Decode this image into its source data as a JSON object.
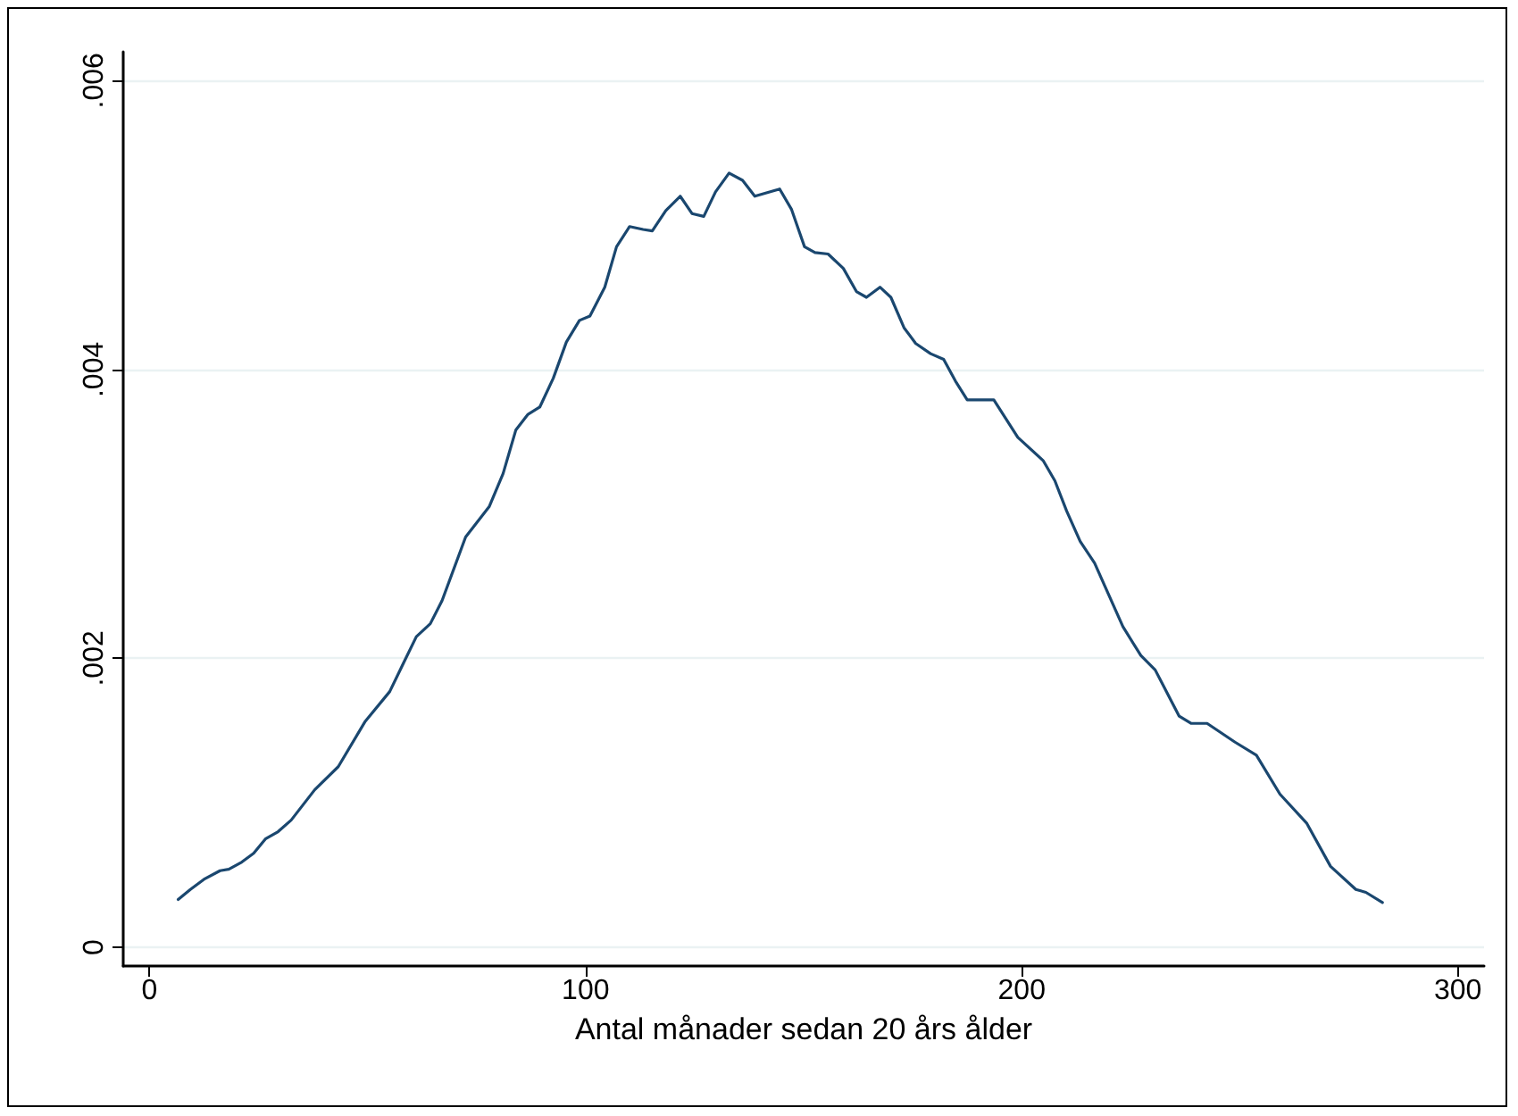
{
  "chart_data": {
    "type": "line",
    "xlabel": "Antal månader sedan 20 års ålder",
    "x": [
      6.6,
      9.4,
      12.5,
      16.2,
      18.2,
      21.2,
      23.9,
      26.6,
      29.5,
      32.5,
      37.9,
      43.3,
      49.4,
      55.1,
      58.3,
      61.2,
      64.4,
      67.1,
      72.5,
      77.9,
      81.1,
      84.0,
      86.8,
      89.5,
      92.6,
      95.6,
      98.6,
      101.0,
      104.4,
      107.1,
      110.1,
      113.2,
      115.3,
      118.4,
      121.7,
      124.4,
      127.1,
      129.8,
      132.9,
      136.0,
      138.8,
      144.5,
      147.2,
      150.2,
      152.6,
      155.6,
      159.1,
      162.1,
      164.4,
      167.5,
      170.0,
      173.0,
      175.7,
      179.1,
      182.1,
      184.8,
      187.5,
      193.6,
      199.1,
      204.9,
      207.6,
      210.3,
      213.4,
      216.7,
      219.8,
      223.2,
      227.3,
      230.6,
      236.1,
      238.8,
      242.5,
      248.9,
      253.8,
      259.2,
      265.3,
      270.8,
      276.6,
      278.9,
      282.7
    ],
    "series": [
      {
        "color": "#1a476f",
        "values": [
          0.00033,
          0.0004,
          0.00047,
          0.00053,
          0.00054,
          0.00059,
          0.00065,
          0.00075,
          0.0008,
          0.00088,
          0.00109,
          0.00125,
          0.00156,
          0.00177,
          0.00197,
          0.00215,
          0.00224,
          0.0024,
          0.00284,
          0.00305,
          0.00328,
          0.00358,
          0.00369,
          0.00374,
          0.00394,
          0.00419,
          0.00434,
          0.00437,
          0.00457,
          0.00485,
          0.00499,
          0.00497,
          0.00496,
          0.0051,
          0.0052,
          0.00508,
          0.00506,
          0.00523,
          0.00536,
          0.00531,
          0.0052,
          0.00525,
          0.00511,
          0.00485,
          0.00481,
          0.0048,
          0.0047,
          0.00454,
          0.0045,
          0.00457,
          0.0045,
          0.00429,
          0.00418,
          0.00411,
          0.00407,
          0.00392,
          0.00379,
          0.00379,
          0.00353,
          0.00337,
          0.00323,
          0.00302,
          0.00281,
          0.00266,
          0.00245,
          0.00222,
          0.00202,
          0.00192,
          0.0016,
          0.00155,
          0.00155,
          0.00142,
          0.00133,
          0.00106,
          0.00086,
          0.00056,
          0.0004,
          0.00038,
          0.00031
        ]
      }
    ],
    "xlim": [
      -6,
      306
    ],
    "xticks": [
      0,
      100,
      200,
      300
    ],
    "ylim": [
      -0.00013,
      0.0062
    ],
    "yticks": [
      {
        "value": 0,
        "label": "0"
      },
      {
        "value": 0.002,
        "label": ".002"
      },
      {
        "value": 0.004,
        "label": ".004"
      },
      {
        "value": 0.006,
        "label": ".006"
      }
    ],
    "grid": "y",
    "line_style": "solid",
    "marker": "none"
  }
}
